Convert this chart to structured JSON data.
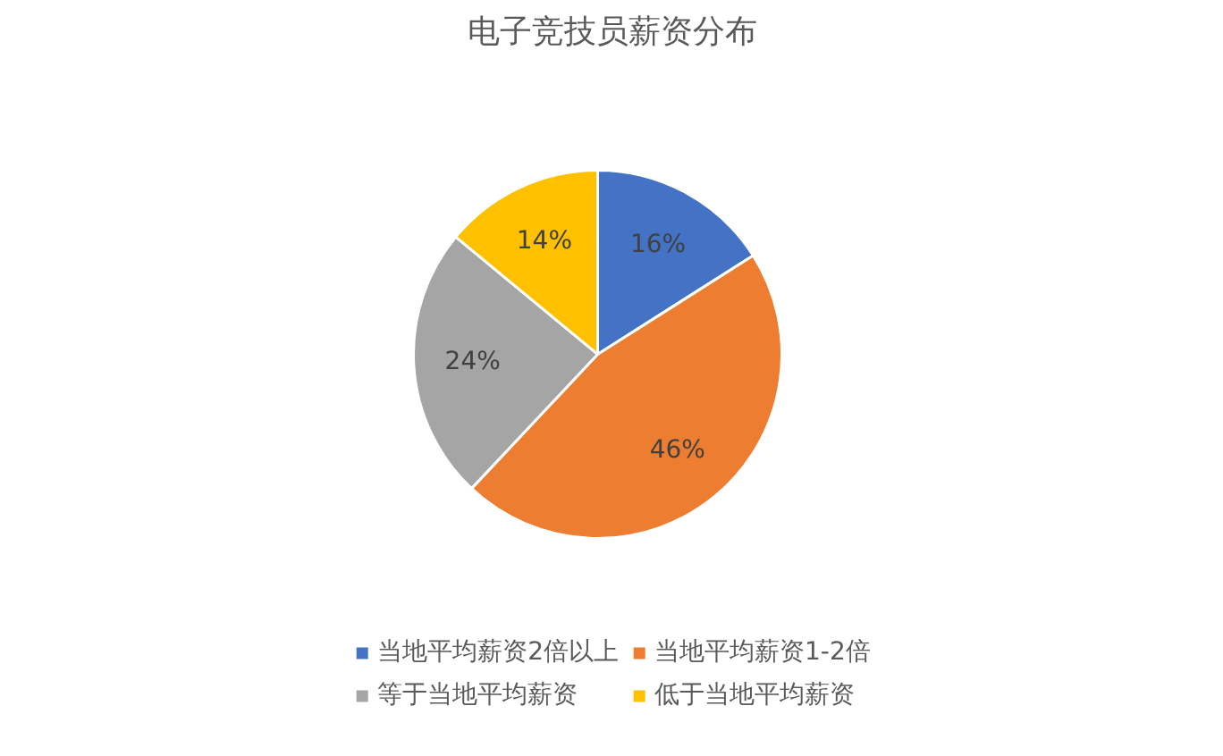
{
  "chart_data": {
    "type": "pie",
    "title": "电子竞技员薪资分布",
    "categories": [
      "当地平均薪资2倍以上",
      "当地平均薪资1-2倍",
      "等于当地平均薪资",
      "低于当地平均薪资"
    ],
    "values": [
      16,
      46,
      24,
      14
    ],
    "colors": [
      "#4472c4",
      "#ed7d31",
      "#a5a5a5",
      "#ffc000"
    ],
    "value_labels": [
      "16%",
      "46%",
      "24%",
      "14%"
    ],
    "legend": "bottom"
  }
}
